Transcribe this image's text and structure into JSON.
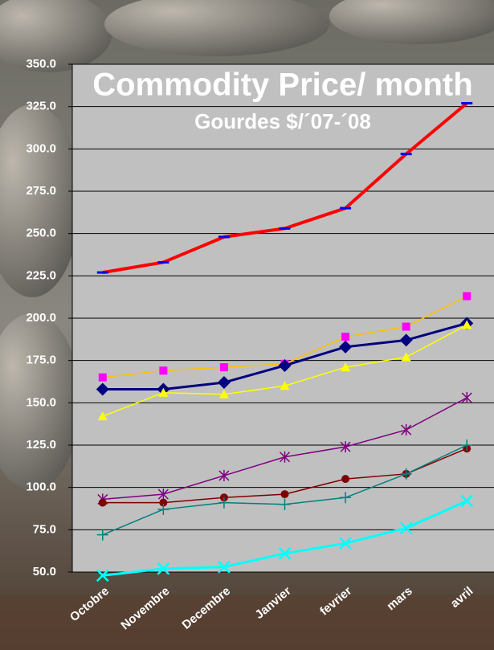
{
  "chart_data": {
    "type": "line",
    "title": "Commodity Price/ month",
    "subtitle": "Gourdes $/´07-´08",
    "categories": [
      "Octobre",
      "Novembre",
      "Decembre",
      "Janvier",
      "fevrier",
      "mars",
      "avril"
    ],
    "series": [
      {
        "color": "#ff0000",
        "marker": "dash",
        "marker_color": "#0000ff",
        "values": [
          227,
          233,
          248,
          253,
          265,
          297,
          327
        ]
      },
      {
        "color": "#ffc000",
        "marker": "square",
        "marker_color": "#ff00ff",
        "values": [
          165,
          169,
          171,
          173,
          189,
          195,
          213
        ]
      },
      {
        "color": "#000080",
        "marker": "diamond",
        "marker_color": "#000080",
        "values": [
          158,
          158,
          162,
          172,
          183,
          187,
          197
        ]
      },
      {
        "color": "#ffff00",
        "marker": "triangle",
        "marker_color": "#ffff00",
        "values": [
          142,
          156,
          155,
          160,
          171,
          177,
          196
        ]
      },
      {
        "color": "#800080",
        "marker": "star",
        "marker_color": "#800080",
        "values": [
          93,
          96,
          107,
          118,
          124,
          134,
          153
        ]
      },
      {
        "color": "#800000",
        "marker": "circle",
        "marker_color": "#800000",
        "values": [
          91,
          91,
          94,
          96,
          105,
          108,
          123
        ]
      },
      {
        "color": "#008080",
        "marker": "plus",
        "marker_color": "#008080",
        "values": [
          72,
          87,
          91,
          90,
          94,
          108,
          125
        ]
      },
      {
        "color": "#00ffff",
        "marker": "x",
        "marker_color": "#00ffff",
        "values": [
          48,
          52,
          53,
          61,
          67,
          76,
          92
        ]
      }
    ],
    "ylim": [
      50,
      350
    ],
    "yticks": [
      {
        "value": 50,
        "label": "50.0"
      },
      {
        "value": 75,
        "label": "75.0"
      },
      {
        "value": 100,
        "label": "100.0"
      },
      {
        "value": 125,
        "label": "125.0"
      },
      {
        "value": 150,
        "label": "150.0"
      },
      {
        "value": 175,
        "label": "175.0"
      },
      {
        "value": 200,
        "label": "200.0"
      },
      {
        "value": 225,
        "label": "225.0"
      },
      {
        "value": 250,
        "label": "250.0"
      },
      {
        "value": 275,
        "label": "275.0"
      },
      {
        "value": 300,
        "label": "300.0"
      },
      {
        "value": 325,
        "label": "325.0"
      },
      {
        "value": 350,
        "label": "350.0"
      }
    ],
    "grid": true
  }
}
